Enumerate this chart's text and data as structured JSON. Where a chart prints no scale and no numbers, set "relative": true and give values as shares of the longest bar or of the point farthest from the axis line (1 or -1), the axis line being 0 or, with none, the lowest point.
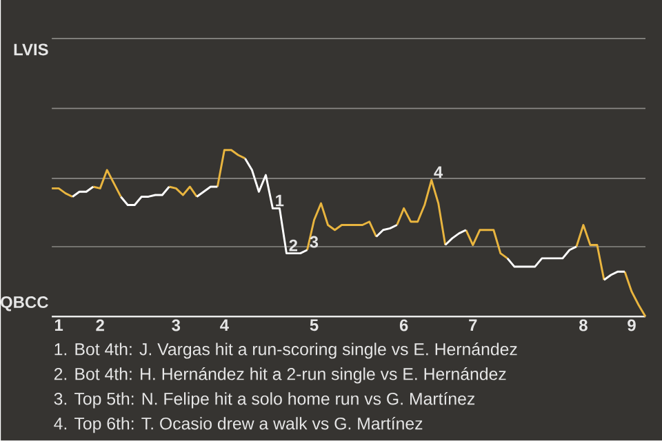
{
  "chart_data": {
    "type": "line",
    "relative": true,
    "categories": [
      null,
      "1",
      null,
      null,
      null,
      null,
      null,
      "2",
      null,
      null,
      null,
      null,
      null,
      null,
      null,
      null,
      null,
      null,
      "3",
      null,
      null,
      null,
      null,
      null,
      null,
      "4",
      null,
      null,
      null,
      null,
      null,
      null,
      null,
      null,
      null,
      null,
      null,
      null,
      "5",
      null,
      null,
      null,
      null,
      null,
      null,
      null,
      null,
      null,
      null,
      null,
      null,
      "6",
      null,
      null,
      null,
      null,
      null,
      null,
      null,
      null,
      null,
      "7",
      null,
      null,
      null,
      null,
      null,
      null,
      null,
      null,
      null,
      null,
      null,
      null,
      null,
      null,
      null,
      "8",
      null,
      null,
      null,
      null,
      null,
      null,
      "9",
      null,
      null
    ],
    "marker": "none",
    "line_style": "solid",
    "ref_lines": [
      {
        "axis": "y",
        "value": 0.42,
        "color": "#8a8885"
      },
      {
        "axis": "y",
        "value": 0.83,
        "color": "#8a8885"
      },
      {
        "axis": "y",
        "value": 1.25,
        "color": "#8a8885"
      },
      {
        "axis": "y",
        "value": 1.67,
        "color": "#8a8885"
      }
    ],
    "series": [
      {
        "color": "#e9b53f",
        "values": [
          0.77,
          0.77,
          0.74,
          0.72,
          null,
          null,
          0.78,
          0.77,
          0.88,
          0.8,
          0.72,
          null,
          null,
          null,
          null,
          null,
          null,
          0.78,
          0.77,
          0.73,
          0.78,
          0.72,
          null,
          null,
          0.78,
          1,
          1,
          0.97,
          0.95,
          null,
          null,
          null,
          null,
          null,
          null,
          null,
          null,
          0.4,
          0.58,
          0.68,
          0.55,
          0.52,
          0.55,
          0.55,
          0.55,
          0.55,
          0.57,
          0.48,
          null,
          null,
          0.55,
          0.65,
          0.57,
          0.57,
          0.67,
          0.82,
          0.68,
          0.43,
          null,
          null,
          0.52,
          0.43,
          0.52,
          0.52,
          0.52,
          0.38,
          0.35,
          null,
          null,
          null,
          null,
          null,
          null,
          null,
          null,
          null,
          0.42,
          0.55,
          0.43,
          0.43,
          0.22,
          null,
          null,
          0.27,
          0.15,
          0.07,
          0
        ]
      },
      {
        "color": "#ffffff",
        "values": [
          null,
          null,
          null,
          0.72,
          0.75,
          0.75,
          0.78,
          null,
          null,
          null,
          0.72,
          0.67,
          0.67,
          0.72,
          0.72,
          0.73,
          0.73,
          0.78,
          null,
          null,
          null,
          0.72,
          0.75,
          0.78,
          0.78,
          null,
          null,
          null,
          0.95,
          0.88,
          0.75,
          0.85,
          0.65,
          0.65,
          0.38,
          0.38,
          0.38,
          0.4,
          null,
          null,
          null,
          null,
          null,
          null,
          null,
          null,
          null,
          0.48,
          0.52,
          0.53,
          0.55,
          null,
          null,
          null,
          null,
          null,
          null,
          0.43,
          0.47,
          0.5,
          0.52,
          null,
          null,
          null,
          null,
          null,
          0.35,
          0.3,
          0.3,
          0.3,
          0.3,
          0.35,
          0.35,
          0.35,
          0.35,
          0.4,
          0.42,
          null,
          null,
          null,
          0.22,
          0.25,
          0.27,
          0.27,
          null,
          null,
          null
        ]
      }
    ],
    "annotations": [
      "LVIS",
      "QBCC",
      {
        "text": "1",
        "y": 0.65
      },
      {
        "text": "2",
        "y": 0.38
      },
      {
        "text": "3",
        "y": 0.4
      },
      {
        "text": "4",
        "y": 0.82
      },
      "1. Bot 4th: J. Vargas hit a run-scoring single vs E. Hernández",
      "2. Bot 4th: H. Hernández hit a 2-run single vs E. Hernández",
      "3. Top 5th: N. Felipe hit a solo home run vs G. Martínez",
      "4. Top 6th: T. Ocasio drew a walk vs G. Martínez"
    ]
  }
}
